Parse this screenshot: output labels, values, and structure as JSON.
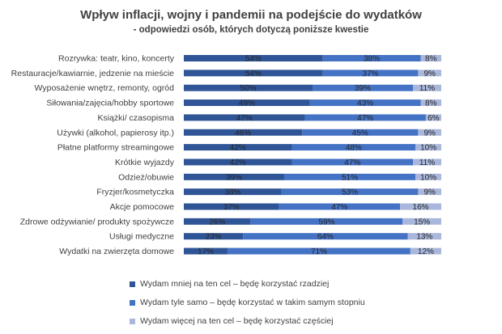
{
  "chart_data": {
    "type": "bar",
    "orientation": "horizontal",
    "stacked": true,
    "title": "Wpływ inflacji, wojny i pandemii na podejście do wydatków",
    "subtitle": "- odpowiedzi osób, których dotyczą poniższe kwestie",
    "xlim": [
      0,
      100
    ],
    "grid": false,
    "legend_position": "bottom-left",
    "categories": [
      "Rozrywka: teatr, kino, koncerty",
      "Restauracje/kawiarnie, jedzenie na mieście",
      "Wyposażenie wnętrz, remonty, ogród",
      "Siłowania/zajęcia/hobby sportowe",
      "Książki/ czasopisma",
      "Używki (alkohol, papierosy itp.)",
      "Płatne platformy streamingowe",
      "Krótkie wyjazdy",
      "Odzież/obuwie",
      "Fryzjer/kosmetyczka",
      "Akcje pomocowe",
      "Zdrowe odżywianie/ produkty spożywcze",
      "Usługi medyczne",
      "Wydatki na zwierzęta domowe"
    ],
    "series": [
      {
        "name": "Wydam mniej na ten cel – będę korzystać rzadziej",
        "color": "#2f5597",
        "values": [
          54,
          54,
          50,
          49,
          47,
          46,
          42,
          42,
          39,
          38,
          37,
          26,
          23,
          17
        ]
      },
      {
        "name": "Wydam tyle samo – będę korzystać w takim samym stopniu",
        "color": "#4472c4",
        "values": [
          38,
          37,
          39,
          43,
          47,
          45,
          48,
          47,
          51,
          53,
          47,
          59,
          64,
          71
        ]
      },
      {
        "name": "Wydam więcej na ten cel – będę korzystać częściej",
        "color": "#a9b7dc",
        "values": [
          8,
          9,
          11,
          8,
          6,
          9,
          10,
          11,
          10,
          9,
          16,
          15,
          13,
          12
        ]
      }
    ],
    "value_suffix": "%"
  }
}
